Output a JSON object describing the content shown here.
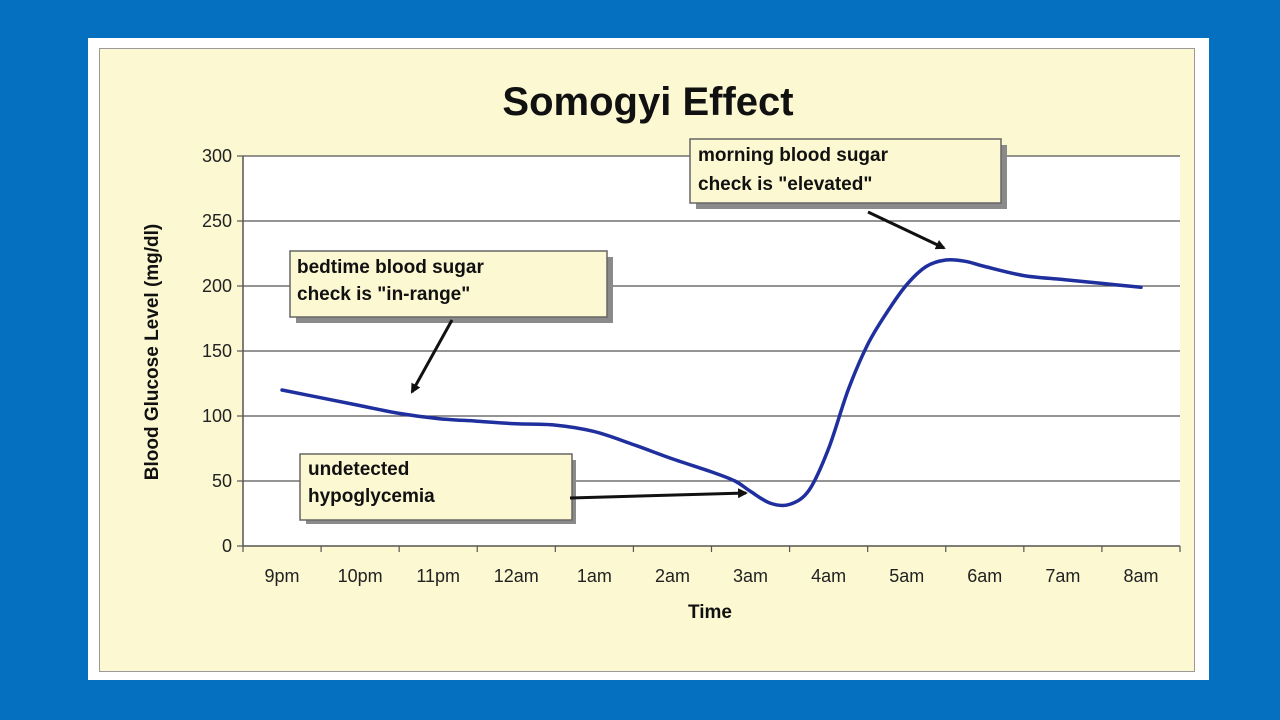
{
  "chart_data": {
    "type": "line",
    "title": "Somogyi Effect",
    "xlabel": "Time",
    "ylabel": "Blood Glucose Level (mg/dl)",
    "categories": [
      "9pm",
      "10pm",
      "11pm",
      "12am",
      "1am",
      "2am",
      "3am",
      "4am",
      "5am",
      "6am",
      "7am",
      "8am"
    ],
    "yticks": [
      0,
      50,
      100,
      150,
      200,
      250,
      300
    ],
    "ylim": [
      0,
      300
    ],
    "grid": true,
    "series": [
      {
        "color": "#1f2f9e",
        "x": [
          0,
          0.5,
          1,
          1.5,
          2,
          2.5,
          3,
          3.5,
          4,
          4.5,
          5,
          5.5,
          5.8,
          6,
          6.25,
          6.5,
          6.75,
          7,
          7.25,
          7.5,
          7.75,
          8,
          8.25,
          8.5,
          8.75,
          9,
          9.5,
          10,
          10.5,
          11
        ],
        "values": [
          120,
          114,
          108,
          102,
          98,
          96,
          94,
          93,
          88,
          78,
          67,
          57,
          50,
          42,
          33,
          32,
          43,
          75,
          120,
          155,
          180,
          201,
          215,
          220,
          219,
          215,
          208,
          205,
          202,
          199
        ]
      }
    ],
    "annotations": [
      {
        "lines": [
          "bedtime blood sugar",
          "check is \"in-range\""
        ]
      },
      {
        "lines": [
          "morning blood sugar",
          "check is \"elevated\""
        ]
      },
      {
        "lines": [
          "undetected",
          "hypoglycemia"
        ]
      }
    ]
  }
}
